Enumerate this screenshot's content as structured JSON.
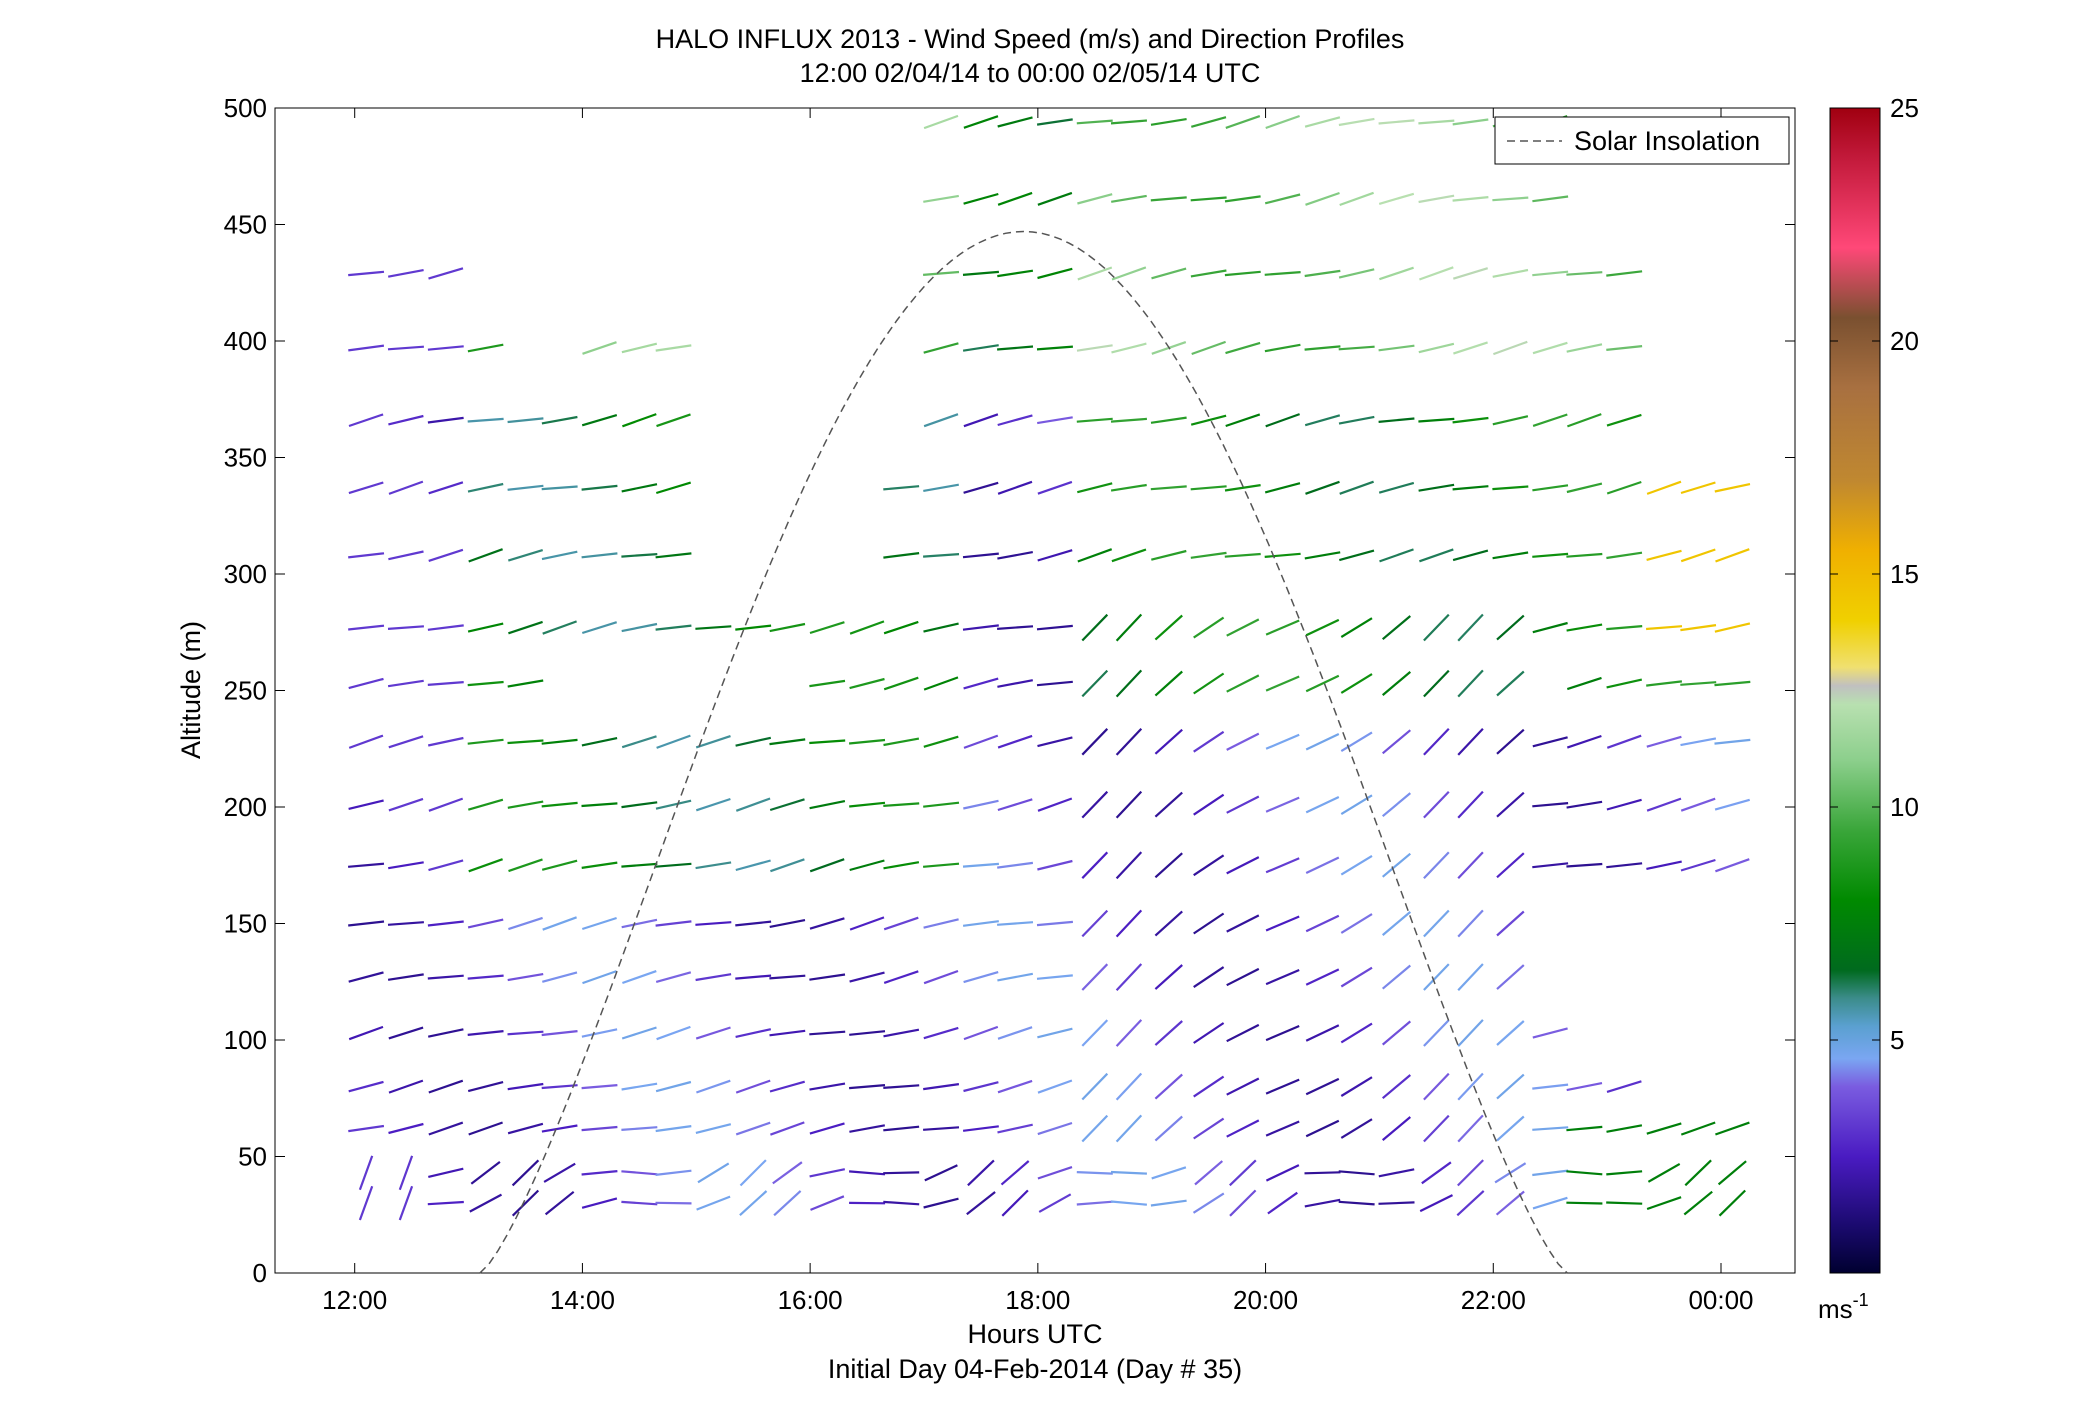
{
  "chart_data": {
    "type": "wind-barb-profile",
    "title": "HALO INFLUX 2013 - Wind Speed (m/s) and Direction Profiles",
    "subtitle": "12:00 02/04/14 to 00:00 02/05/14  UTC",
    "xlabel": "Hours UTC",
    "xlabel2": "Initial Day 04-Feb-2014 (Day # 35)",
    "ylabel": "Altitude (m)",
    "xlim": [
      11.3,
      24.65
    ],
    "ylim": [
      0,
      500
    ],
    "x_ticks": [
      12,
      14,
      16,
      18,
      20,
      22,
      24
    ],
    "x_tick_labels": [
      "12:00",
      "14:00",
      "16:00",
      "18:00",
      "20:00",
      "22:00",
      "00:00"
    ],
    "y_ticks": [
      0,
      50,
      100,
      150,
      200,
      250,
      300,
      350,
      400,
      450,
      500
    ],
    "colorbar": {
      "label": "ms",
      "label_sup": "-1",
      "range": [
        0,
        25
      ],
      "ticks": [
        5,
        10,
        15,
        20,
        25
      ],
      "colors": [
        [
          0,
          "#000030"
        ],
        [
          1,
          "#1a0a6e"
        ],
        [
          2.5,
          "#4a1bc2"
        ],
        [
          4,
          "#7a5ce0"
        ],
        [
          4.6,
          "#7aa6f2"
        ],
        [
          5.3,
          "#5aa0d0"
        ],
        [
          5.9,
          "#3b8c8a"
        ],
        [
          6.5,
          "#006a1e"
        ],
        [
          8,
          "#008a00"
        ],
        [
          9.5,
          "#3aa63a"
        ],
        [
          11,
          "#8ccf8c"
        ],
        [
          12.2,
          "#b8e0b0"
        ],
        [
          12.6,
          "#c0c0c0"
        ],
        [
          13,
          "#f0e070"
        ],
        [
          14,
          "#f0d000"
        ],
        [
          15.5,
          "#f0b000"
        ],
        [
          17,
          "#c08830"
        ],
        [
          19,
          "#a87040"
        ],
        [
          20.5,
          "#7a5030"
        ],
        [
          22,
          "#ff4878"
        ],
        [
          24,
          "#c01838"
        ],
        [
          25,
          "#a00010"
        ]
      ]
    },
    "solar_insolation": {
      "label": "Solar Insolation",
      "start_hour": 13.1,
      "end_hour": 22.65,
      "peak_altitude": 447,
      "peak_hour": 17.9
    },
    "legend_position": "top-right",
    "grid": false,
    "barb_levels": [
      30,
      43,
      62,
      80,
      103,
      127,
      150,
      175,
      201,
      228,
      253,
      277,
      308,
      337,
      366,
      397,
      429,
      461,
      494
    ],
    "barb_times": [
      12.1,
      12.45,
      12.8,
      13.15,
      13.5,
      13.8,
      14.15,
      14.5,
      14.8,
      15.15,
      15.5,
      15.8,
      16.15,
      16.5,
      16.8,
      17.15,
      17.5,
      17.8,
      18.15,
      18.5,
      18.8,
      19.15,
      19.5,
      19.8,
      20.15,
      20.5,
      20.8,
      21.15,
      21.5,
      21.8,
      22.15,
      22.5,
      22.8,
      23.15,
      23.5,
      23.8,
      24.1
    ],
    "barb_note": "each segment: speed m/s (color) and direction along altitude/time rows"
  }
}
